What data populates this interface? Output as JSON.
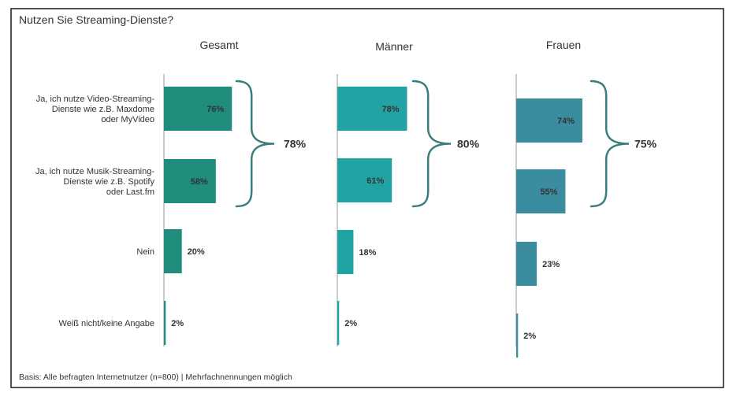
{
  "chart_data": {
    "type": "bar",
    "orientation": "horizontal",
    "title": "Nutzen Sie Streaming-Dienste?",
    "categories": [
      "Ja, ich nutze Video-Streaming-\nDienste wie z.B. Maxdome\noder MyVideo",
      "Ja, ich nutze Musik-Streaming-\nDienste wie z.B. Spotify\noder Last.fm",
      "Nein",
      "Weiß nicht/keine Angabe"
    ],
    "series": [
      {
        "name": "Gesamt",
        "values": [
          76,
          58,
          20,
          2
        ],
        "labels": [
          "76%",
          "58%",
          "20%",
          "2%"
        ],
        "group_total": 78,
        "group_label": "78%",
        "color": "#1f8c7c"
      },
      {
        "name": "Männer",
        "values": [
          78,
          61,
          18,
          2
        ],
        "labels": [
          "78%",
          "61%",
          "18%",
          "2%"
        ],
        "group_total": 80,
        "group_label": "80%",
        "color": "#22a3a3"
      },
      {
        "name": "Frauen",
        "values": [
          74,
          55,
          23,
          2
        ],
        "labels": [
          "74%",
          "55%",
          "23%",
          "2%"
        ],
        "group_total": 75,
        "group_label": "75%",
        "color": "#3a8c9e"
      }
    ],
    "xlim": [
      0,
      100
    ],
    "grid": false,
    "legend": "none",
    "footnote": "Basis: Alle befragten Internetnutzer (n=800) | Mehrfachnennungen möglich"
  }
}
